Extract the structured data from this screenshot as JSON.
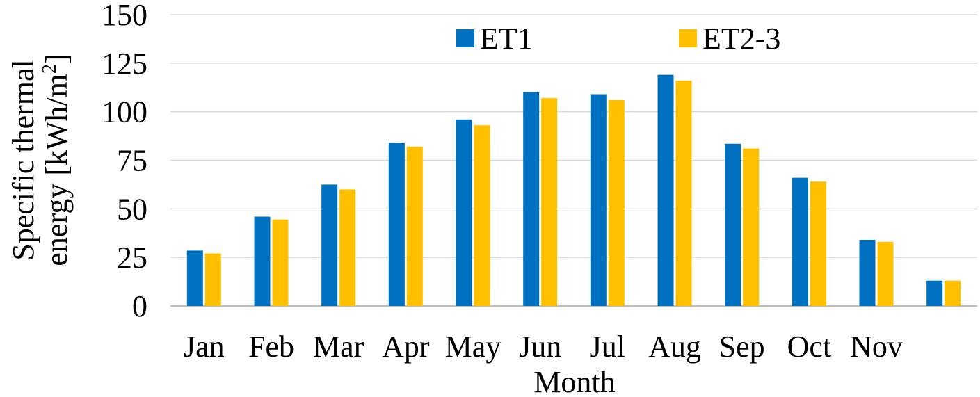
{
  "chart_data": {
    "type": "bar",
    "title": "",
    "xlabel": "Month",
    "ylabel_line1": "Specific thermal",
    "ylabel_line2": "energy [kWh/m",
    "ylabel_sup": "2",
    "ylabel_end": "]",
    "categories": [
      "Jan",
      "Feb",
      "Mar",
      "Apr",
      "May",
      "Jun",
      "Jul",
      "Aug",
      "Sep",
      "Oct",
      "Nov",
      ""
    ],
    "series": [
      {
        "name": "ET1",
        "color": "#0070C0",
        "values": [
          28.5,
          46,
          62.5,
          84,
          96,
          110,
          109,
          119,
          83.5,
          66,
          34,
          13
        ]
      },
      {
        "name": "ET2-3",
        "color": "#FFC000",
        "values": [
          27,
          44.5,
          60,
          82,
          93,
          107,
          106,
          116,
          81,
          64,
          33,
          13
        ]
      }
    ],
    "ylim": [
      0,
      150
    ],
    "yticks": [
      "0",
      "25",
      "50",
      "75",
      "100",
      "125",
      "150"
    ],
    "grid": true,
    "legend": "top-center"
  }
}
